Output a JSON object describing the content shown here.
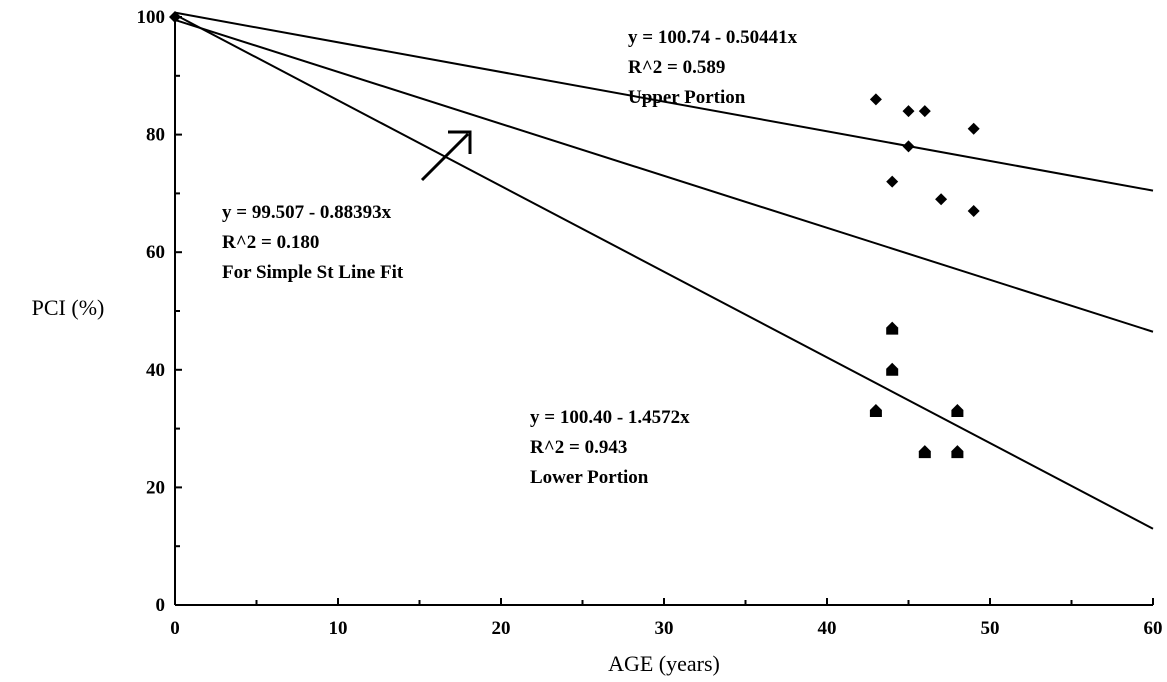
{
  "chart_data": {
    "type": "scatter",
    "title": "",
    "xlabel": "AGE (years)",
    "ylabel": "PCI (%)",
    "xlim": [
      0,
      60
    ],
    "ylim": [
      0,
      100
    ],
    "xticks": [
      0,
      10,
      20,
      30,
      40,
      50,
      60
    ],
    "yticks": [
      0,
      20,
      40,
      60,
      80,
      100
    ],
    "grid": false,
    "series": [
      {
        "marker": "diamond",
        "points": [
          [
            0,
            100
          ],
          [
            43,
            86
          ],
          [
            45,
            84
          ],
          [
            46,
            84
          ],
          [
            49,
            81
          ],
          [
            45,
            78
          ],
          [
            44,
            72
          ],
          [
            47,
            69
          ],
          [
            49,
            67
          ]
        ]
      },
      {
        "marker": "house",
        "points": [
          [
            44,
            47
          ],
          [
            44,
            40
          ],
          [
            43,
            33
          ],
          [
            48,
            33
          ],
          [
            46,
            26
          ],
          [
            48,
            26
          ]
        ]
      }
    ],
    "fits": [
      {
        "intercept": 100.74,
        "slope": -0.50441,
        "lines": [
          "y = 100.74 - 0.50441x",
          "R^2 = 0.589",
          "Upper Portion"
        ]
      },
      {
        "intercept": 99.507,
        "slope": -0.88393,
        "lines": [
          "y = 99.507 - 0.88393x",
          "R^2 = 0.180",
          "For Simple St Line Fit"
        ]
      },
      {
        "intercept": 100.4,
        "slope": -1.4572,
        "lines": [
          "y = 100.40 - 1.4572x",
          "R^2 = 0.943",
          "Lower Portion"
        ]
      }
    ]
  }
}
